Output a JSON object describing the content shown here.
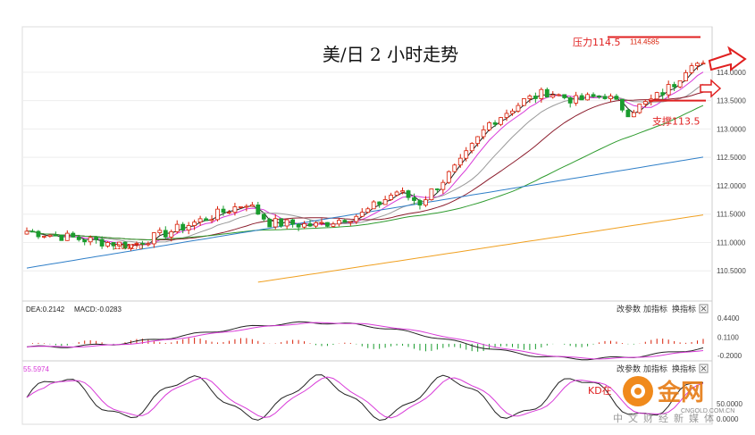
{
  "colors": {
    "up": "#d81e06",
    "down": "#1a9c2e",
    "ma_fast": "#222222",
    "ma_pink": "#d83ad8",
    "ma_gray": "#999999",
    "ma_darkred": "#8b1c2c",
    "ma_green": "#2e9b2e",
    "ma_blue": "#2f7fc8",
    "ma_orange": "#f0a020",
    "dea": "#d83ad8",
    "macd": "#222222",
    "annot_red": "#e02020"
  },
  "chart_data": [
    {
      "type": "candlestick",
      "title": "美/日 2 小时走势",
      "ylim": [
        110.0,
        114.8
      ],
      "yticks": [
        "114.0000",
        "113.5000",
        "113.0000",
        "112.5000",
        "112.0000",
        "111.5000",
        "111.0000",
        "110.5000"
      ],
      "annotations": {
        "resistance_label": "压力114.5",
        "resistance_value": 114.5,
        "support_label": "支撑113.5",
        "support_value": 113.5,
        "high_label": "114.4585",
        "high_value": 114.4585,
        "low_label": "110.9270",
        "low_value": 110.927
      }
    },
    {
      "type": "line",
      "name": "MACD",
      "header": {
        "dea_label": "DEA:0.2142",
        "macd_label": "MACD:-0.0283"
      },
      "ylim": [
        -0.26,
        0.5
      ],
      "yticks": [
        "0.4400",
        "0.1100",
        "-0.2000"
      ],
      "tools": [
        "改参数",
        "加指标",
        "换指标"
      ]
    },
    {
      "type": "line",
      "name": "KD",
      "header": {
        "value_label": "55.5974"
      },
      "ylim": [
        0,
        100
      ],
      "yticks": [
        "50.0000",
        "0.0000"
      ],
      "tools": [
        "改参数",
        "加指标",
        "换指标"
      ],
      "annotation": "KD在"
    }
  ],
  "watermark": {
    "brand": "金网",
    "site": "CNGOLD.COM.CN",
    "tagline": "中文财经新媒体"
  }
}
